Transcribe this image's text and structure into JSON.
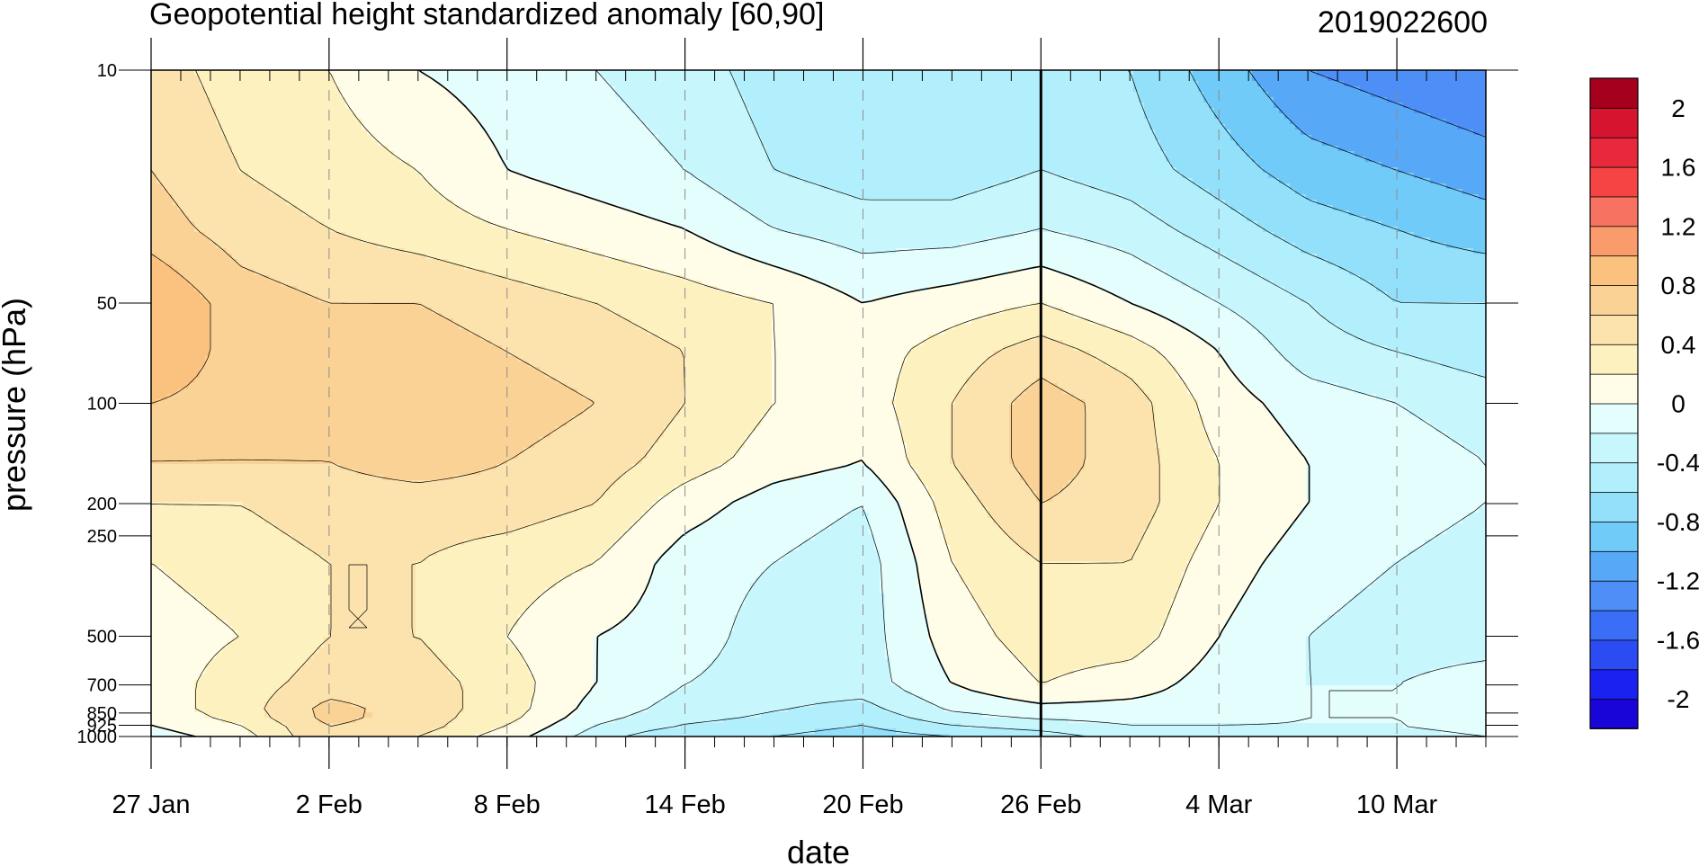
{
  "chart_data": {
    "type": "heatmap",
    "title": "Geopotential height standardized anomaly [60,90]",
    "run_label": "2019022600",
    "xlabel": "date",
    "ylabel": "pressure (hPa)",
    "y_scale": "log",
    "y_reversed": true,
    "x_range": [
      "2019-01-27",
      "2019-03-13"
    ],
    "y_range": [
      1000,
      10
    ],
    "x_tick_dates": [
      "2019-01-27",
      "2019-02-02",
      "2019-02-08",
      "2019-02-14",
      "2019-02-20",
      "2019-02-26",
      "2019-03-04",
      "2019-03-10"
    ],
    "x_tick_labels": [
      "27 Jan",
      "2 Feb",
      "8 Feb",
      "14 Feb",
      "20 Feb",
      "26 Feb",
      "4 Mar",
      "10 Mar"
    ],
    "y_ticks": [
      10,
      50,
      100,
      200,
      250,
      500,
      700,
      850,
      925,
      1000
    ],
    "y_tick_labels": [
      "10",
      "50",
      "100",
      "200",
      "250",
      "500",
      "700",
      "850",
      "925",
      "1000"
    ],
    "vertical_dashed_lines": [
      "2019-02-02",
      "2019-02-08",
      "2019-02-14",
      "2019-02-20",
      "2019-02-26",
      "2019-03-04",
      "2019-03-10"
    ],
    "current_date_line": "2019-02-26",
    "levels": [
      -2.2,
      -2.0,
      -1.8,
      -1.6,
      -1.4,
      -1.2,
      -1.0,
      -0.8,
      -0.6,
      -0.4,
      -0.2,
      0.0,
      0.2,
      0.4,
      0.6,
      0.8,
      1.0,
      1.2,
      1.4,
      1.6,
      1.8,
      2.0,
      2.2
    ],
    "colors": [
      "#1a05d8",
      "#1a21f0",
      "#2a4cf2",
      "#3a6ef7",
      "#4e8ef7",
      "#58a8f8",
      "#70cbf9",
      "#93e0fb",
      "#b2effc",
      "#c8f6fd",
      "#e4fdfd",
      "#fffde7",
      "#fcf1bf",
      "#fce3ad",
      "#fbd295",
      "#fbc17e",
      "#fa9b6b",
      "#f77260",
      "#f64444",
      "#e8283b",
      "#d51530",
      "#a5001c"
    ],
    "colorbar_tick_labels": [
      "2",
      "1.6",
      "1.2",
      "0.8",
      "0.4",
      "0",
      "-0.4",
      "-0.8",
      "-1.2",
      "-1.6",
      "-2"
    ],
    "colorbar_tick_values": [
      2.0,
      1.6,
      1.2,
      0.8,
      0.4,
      0.0,
      -0.4,
      -0.8,
      -1.2,
      -1.6,
      -2.0
    ],
    "grid_pressure": [
      1000,
      925,
      850,
      700,
      500,
      300,
      200,
      150,
      100,
      70,
      50,
      30,
      20,
      10
    ],
    "grid_dates": [
      "2019-01-27",
      "2019-01-30",
      "2019-02-02",
      "2019-02-05",
      "2019-02-08",
      "2019-02-11",
      "2019-02-14",
      "2019-02-17",
      "2019-02-20",
      "2019-02-23",
      "2019-02-26",
      "2019-03-01",
      "2019-03-04",
      "2019-03-07",
      "2019-03-10",
      "2019-03-13"
    ],
    "z_rows": [
      [
        -0.1,
        0.1,
        0.6,
        0.4,
        0.1,
        -0.3,
        -0.6,
        -0.6,
        -0.7,
        -0.6,
        -0.5,
        -0.3,
        -0.3,
        -0.3,
        -0.3,
        -0.2
      ],
      [
        0.0,
        0.2,
        0.6,
        0.5,
        0.2,
        -0.2,
        -0.4,
        -0.5,
        -0.6,
        -0.4,
        -0.3,
        -0.2,
        -0.2,
        -0.2,
        -0.2,
        -0.1
      ],
      [
        0.1,
        0.3,
        0.7,
        0.5,
        0.3,
        -0.1,
        -0.3,
        -0.4,
        -0.5,
        -0.2,
        -0.1,
        -0.1,
        -0.1,
        -0.2,
        -0.2,
        -0.1
      ],
      [
        0.1,
        0.3,
        0.5,
        0.5,
        0.3,
        0.0,
        -0.2,
        -0.3,
        -0.3,
        0.0,
        0.2,
        0.1,
        -0.1,
        -0.2,
        -0.2,
        -0.1
      ],
      [
        0.1,
        0.2,
        0.4,
        0.4,
        0.2,
        0.0,
        -0.1,
        -0.3,
        -0.3,
        0.1,
        0.3,
        0.3,
        0.0,
        -0.2,
        -0.3,
        -0.3
      ],
      [
        0.2,
        0.3,
        0.4,
        0.4,
        0.3,
        0.2,
        -0.1,
        -0.2,
        -0.3,
        0.2,
        0.4,
        0.4,
        0.1,
        -0.1,
        -0.2,
        -0.3
      ],
      [
        0.4,
        0.4,
        0.5,
        0.5,
        0.5,
        0.4,
        0.1,
        -0.1,
        -0.2,
        0.3,
        0.6,
        0.5,
        0.2,
        0.0,
        -0.1,
        -0.2
      ],
      [
        0.6,
        0.6,
        0.6,
        0.7,
        0.6,
        0.5,
        0.3,
        0.1,
        0.0,
        0.4,
        0.7,
        0.5,
        0.2,
        0.0,
        -0.1,
        -0.2
      ],
      [
        0.8,
        0.7,
        0.7,
        0.7,
        0.7,
        0.6,
        0.4,
        0.2,
        0.1,
        0.4,
        0.7,
        0.5,
        0.1,
        -0.1,
        -0.2,
        -0.3
      ],
      [
        1.0,
        0.7,
        0.7,
        0.7,
        0.6,
        0.5,
        0.4,
        0.2,
        0.1,
        0.3,
        0.5,
        0.3,
        0.0,
        -0.3,
        -0.4,
        -0.5
      ],
      [
        1.0,
        0.7,
        0.6,
        0.6,
        0.5,
        0.4,
        0.3,
        0.2,
        0.0,
        0.1,
        0.2,
        0.0,
        -0.2,
        -0.4,
        -0.6,
        -0.6
      ],
      [
        0.7,
        0.5,
        0.4,
        0.3,
        0.2,
        0.1,
        0.0,
        -0.2,
        -0.3,
        -0.3,
        -0.2,
        -0.3,
        -0.5,
        -0.7,
        -0.8,
        -0.9
      ],
      [
        0.6,
        0.4,
        0.3,
        0.2,
        0.0,
        -0.1,
        -0.2,
        -0.4,
        -0.5,
        -0.5,
        -0.4,
        -0.5,
        -0.7,
        -0.9,
        -1.0,
        -1.1
      ],
      [
        0.5,
        0.3,
        0.2,
        0.0,
        -0.1,
        -0.2,
        -0.3,
        -0.5,
        -0.6,
        -0.6,
        -0.5,
        -0.6,
        -0.9,
        -1.2,
        -1.3,
        -1.4
      ]
    ]
  }
}
